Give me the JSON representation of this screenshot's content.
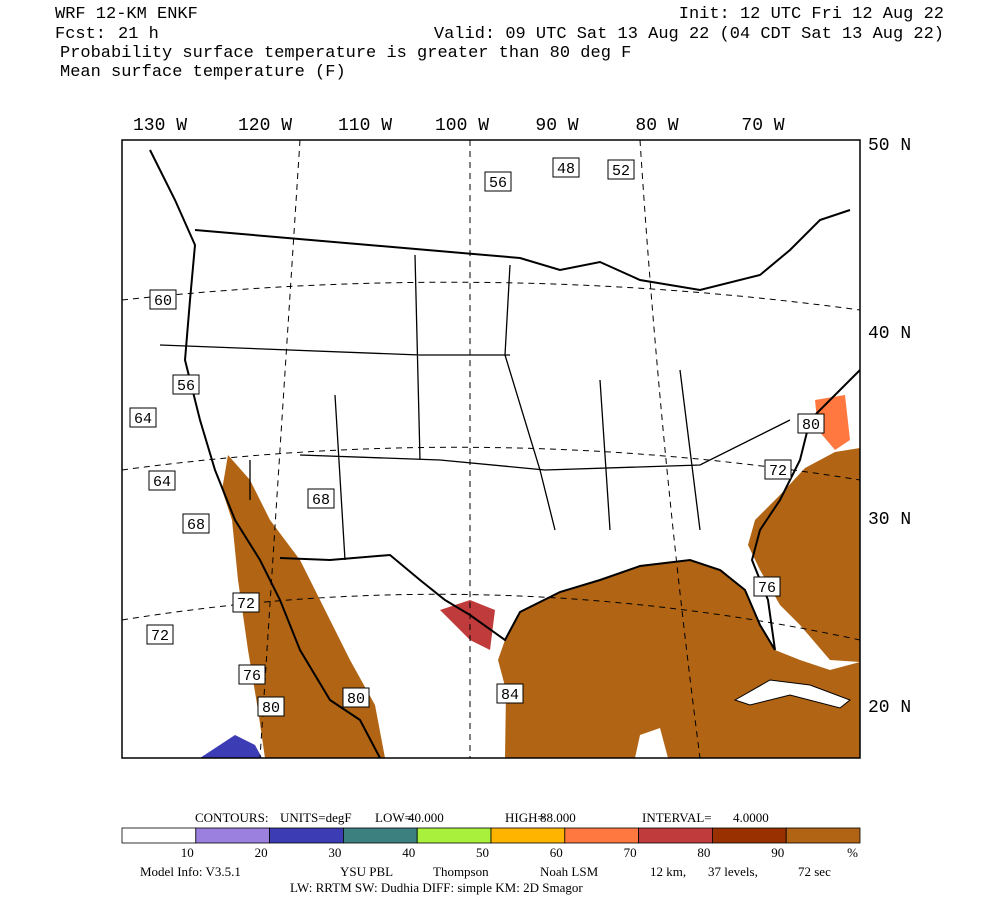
{
  "header": {
    "model": "WRF 12-KM ENKF",
    "init": "Init: 12 UTC Fri 12 Aug 22",
    "fcst_label": "Fcst:",
    "fcst": "21 h",
    "valid": "Valid: 09 UTC Sat 13 Aug 22 (04 CDT Sat 13 Aug 22)",
    "field1": "Probability surface temperature is greater than 80 deg F",
    "field2": "Mean surface temperature (F)"
  },
  "map": {
    "lon_labels": [
      "130 W",
      "120 W",
      "110 W",
      "100 W",
      "90 W",
      "80 W",
      "70 W"
    ],
    "lat_labels": [
      "50 N",
      "40 N",
      "30 N",
      "20 N"
    ],
    "contour_labels": [
      "48",
      "52",
      "56",
      "60",
      "56",
      "64",
      "64",
      "68",
      "68",
      "80",
      "72",
      "76",
      "72",
      "72",
      "76",
      "80",
      "80",
      "84"
    ]
  },
  "contour_info": [
    "CONTOURS:",
    "UNITS=degF",
    "LOW=",
    "40.000",
    "HIGH=",
    "88.000",
    "INTERVAL=",
    "4.0000"
  ],
  "colorbar": {
    "colors": [
      "#ffffff",
      "#9c80e0",
      "#3c3cb4",
      "#3c8080",
      "#a8f03c",
      "#ffb400",
      "#ff7840",
      "#c03c3c",
      "#983000",
      "#b06414"
    ],
    "labels": [
      "10",
      "20",
      "30",
      "40",
      "50",
      "60",
      "70",
      "80",
      "90",
      "%"
    ]
  },
  "footer": {
    "line1": [
      "Model Info: V3.5.1",
      "YSU PBL",
      "Thompson",
      "Noah LSM",
      "12 km,",
      "37 levels,",
      "72 sec"
    ],
    "line2": "LW: RRTM SW: Dudhia  DIFF: simple KM: 2D Smagor"
  }
}
